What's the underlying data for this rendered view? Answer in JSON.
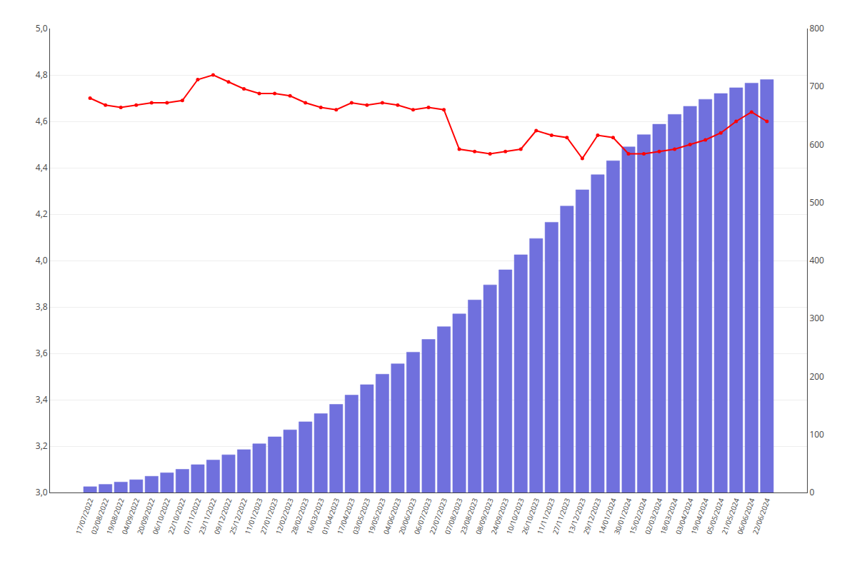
{
  "chart_data": {
    "type": "bar",
    "categories": [
      "17/07/2022",
      "02/08/2022",
      "19/08/2022",
      "04/09/2022",
      "20/09/2022",
      "06/10/2022",
      "22/10/2022",
      "07/11/2022",
      "23/11/2022",
      "09/12/2022",
      "25/12/2022",
      "11/01/2023",
      "27/01/2023",
      "12/02/2023",
      "28/02/2023",
      "16/03/2023",
      "01/04/2023",
      "17/04/2023",
      "03/05/2023",
      "19/05/2023",
      "04/06/2023",
      "20/06/2023",
      "06/07/2023",
      "22/07/2023",
      "07/08/2023",
      "23/08/2023",
      "08/09/2023",
      "24/09/2023",
      "10/10/2023",
      "26/10/2023",
      "11/11/2023",
      "27/11/2023",
      "13/12/2023",
      "29/12/2023",
      "14/01/2024",
      "30/01/2024",
      "15/02/2024",
      "02/03/2024",
      "18/03/2024",
      "03/04/2024",
      "19/04/2024",
      "05/05/2024",
      "21/05/2024",
      "06/06/2024",
      "22/06/2024"
    ],
    "series": [
      {
        "type": "bar",
        "axis": "y2",
        "color": "#7070dd",
        "values": [
          10,
          14,
          18,
          22,
          28,
          34,
          40,
          48,
          56,
          65,
          74,
          84,
          96,
          108,
          122,
          136,
          152,
          168,
          186,
          204,
          222,
          242,
          264,
          286,
          308,
          332,
          358,
          384,
          410,
          438,
          466,
          494,
          522,
          548,
          572,
          596,
          617,
          635,
          652,
          666,
          678,
          688,
          698,
          706,
          712
        ]
      },
      {
        "type": "line",
        "color": "#ff0000",
        "marker": "circle",
        "values": [
          4.7,
          4.67,
          4.66,
          4.67,
          4.68,
          4.68,
          4.69,
          4.78,
          4.8,
          4.77,
          4.74,
          4.72,
          4.72,
          4.71,
          4.68,
          4.66,
          4.65,
          4.68,
          4.67,
          4.68,
          4.67,
          4.65,
          4.66,
          4.65,
          4.48,
          4.47,
          4.46,
          4.47,
          4.48,
          4.56,
          4.54,
          4.53,
          4.44,
          4.54,
          4.53,
          4.46,
          4.46,
          4.47,
          4.48,
          4.5,
          4.52,
          4.55,
          4.6,
          4.64,
          4.6
        ]
      }
    ],
    "ylim": [
      3.0,
      5.0
    ],
    "yticks": [
      {
        "value": 3.0,
        "label": "3,0"
      },
      {
        "value": 3.2,
        "label": "3,2"
      },
      {
        "value": 3.4,
        "label": "3,4"
      },
      {
        "value": 3.6,
        "label": "3,6"
      },
      {
        "value": 3.8,
        "label": "3,8"
      },
      {
        "value": 4.0,
        "label": "4,0"
      },
      {
        "value": 4.2,
        "label": "4,2"
      },
      {
        "value": 4.4,
        "label": "4,4"
      },
      {
        "value": 4.6,
        "label": "4,6"
      },
      {
        "value": 4.8,
        "label": "4,8"
      },
      {
        "value": 5.0,
        "label": "5,0"
      }
    ],
    "y2lim": [
      0,
      800
    ],
    "y2ticks": [
      0,
      100,
      200,
      300,
      400,
      500,
      600,
      700,
      800
    ],
    "grid": true
  }
}
